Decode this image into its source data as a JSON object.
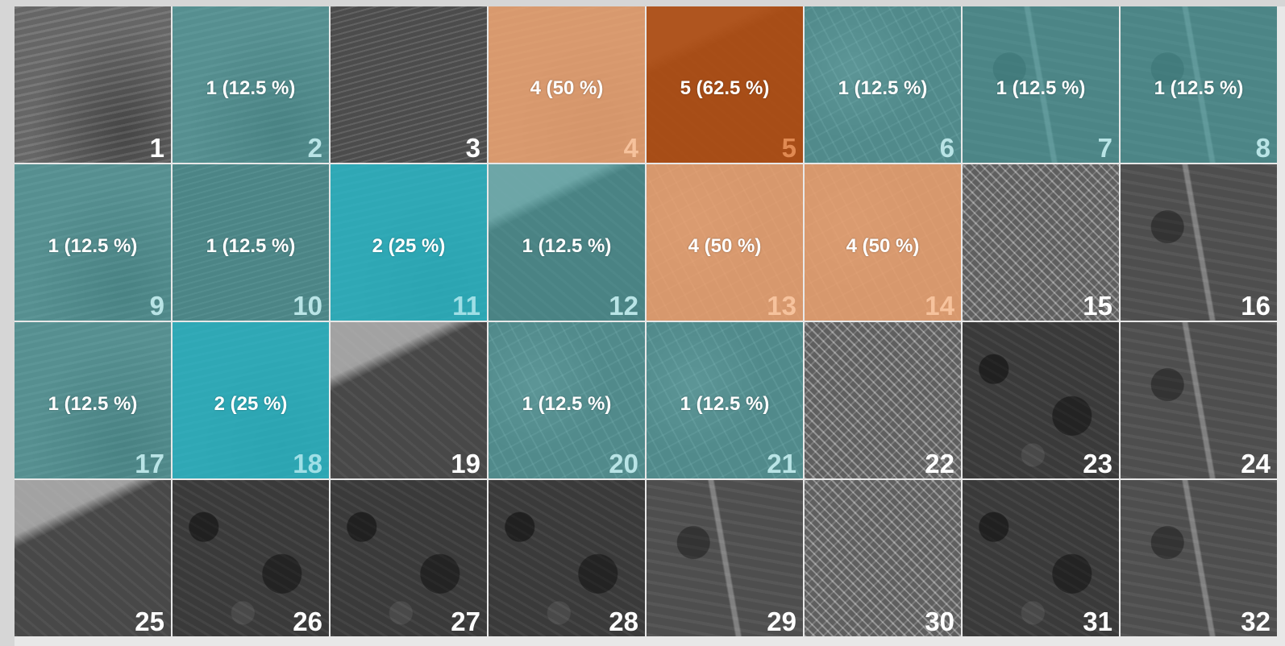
{
  "colors": {
    "teal_overlay": "#4ca8aa",
    "cyan_overlay": "#28b2c0",
    "peach_overlay": "#e8a070",
    "rust_overlay": "#b04e14",
    "label_text": "#ffffff"
  },
  "cells": [
    {
      "id": "1",
      "label": "",
      "overlay": "none",
      "texture": "sea"
    },
    {
      "id": "2",
      "label": "1 (12.5 %)",
      "overlay": "teal",
      "texture": "sea"
    },
    {
      "id": "3",
      "label": "",
      "overlay": "none",
      "texture": "dark-sea"
    },
    {
      "id": "4",
      "label": "4 (50 %)",
      "overlay": "peach",
      "texture": "sea"
    },
    {
      "id": "5",
      "label": "5 (62.5 %)",
      "overlay": "rust",
      "texture": "coast"
    },
    {
      "id": "6",
      "label": "1 (12.5 %)",
      "overlay": "teal",
      "texture": "town"
    },
    {
      "id": "7",
      "label": "1 (12.5 %)",
      "overlay": "teal",
      "texture": "field"
    },
    {
      "id": "8",
      "label": "1 (12.5 %)",
      "overlay": "teal",
      "texture": "field"
    },
    {
      "id": "9",
      "label": "1 (12.5 %)",
      "overlay": "teal",
      "texture": "sea"
    },
    {
      "id": "10",
      "label": "1 (12.5 %)",
      "overlay": "teal",
      "texture": "dark-sea"
    },
    {
      "id": "11",
      "label": "2 (25 %)",
      "overlay": "cyan",
      "texture": "sea"
    },
    {
      "id": "12",
      "label": "1 (12.5 %)",
      "overlay": "teal",
      "texture": "coast"
    },
    {
      "id": "13",
      "label": "4 (50 %)",
      "overlay": "peach",
      "texture": "town"
    },
    {
      "id": "14",
      "label": "4 (50 %)",
      "overlay": "peach",
      "texture": "town"
    },
    {
      "id": "15",
      "label": "",
      "overlay": "none",
      "texture": "bright-town"
    },
    {
      "id": "16",
      "label": "",
      "overlay": "none",
      "texture": "field"
    },
    {
      "id": "17",
      "label": "1 (12.5 %)",
      "overlay": "teal",
      "texture": "sea"
    },
    {
      "id": "18",
      "label": "2 (25 %)",
      "overlay": "cyan",
      "texture": "sea"
    },
    {
      "id": "19",
      "label": "",
      "overlay": "none",
      "texture": "coast"
    },
    {
      "id": "20",
      "label": "1 (12.5 %)",
      "overlay": "teal",
      "texture": "town"
    },
    {
      "id": "21",
      "label": "1 (12.5 %)",
      "overlay": "teal",
      "texture": "town"
    },
    {
      "id": "22",
      "label": "",
      "overlay": "none",
      "texture": "bright-town"
    },
    {
      "id": "23",
      "label": "",
      "overlay": "none",
      "texture": "forest"
    },
    {
      "id": "24",
      "label": "",
      "overlay": "none",
      "texture": "field"
    },
    {
      "id": "25",
      "label": "",
      "overlay": "none",
      "texture": "coast"
    },
    {
      "id": "26",
      "label": "",
      "overlay": "none",
      "texture": "forest"
    },
    {
      "id": "27",
      "label": "",
      "overlay": "none",
      "texture": "forest"
    },
    {
      "id": "28",
      "label": "",
      "overlay": "none",
      "texture": "forest"
    },
    {
      "id": "29",
      "label": "",
      "overlay": "none",
      "texture": "field"
    },
    {
      "id": "30",
      "label": "",
      "overlay": "none",
      "texture": "bright-town"
    },
    {
      "id": "31",
      "label": "",
      "overlay": "none",
      "texture": "forest"
    },
    {
      "id": "32",
      "label": "",
      "overlay": "none",
      "texture": "field"
    }
  ]
}
